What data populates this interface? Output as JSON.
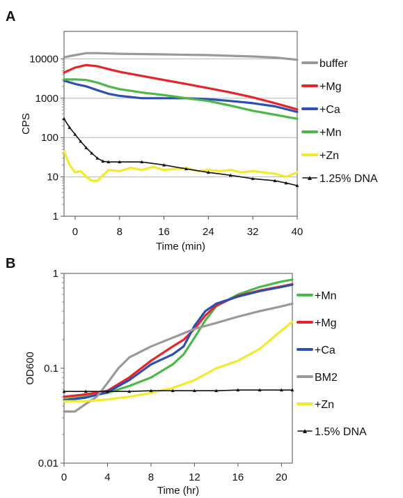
{
  "chart_data": [
    {
      "panel": "A",
      "type": "line",
      "yscale": "log",
      "xlabel": "Time (min)",
      "ylabel": "CPS",
      "xlim": [
        -2,
        40
      ],
      "ylim": [
        1,
        50000
      ],
      "xticks": [
        "0",
        "8",
        "16",
        "24",
        "32",
        "40"
      ],
      "yticks": [
        "1",
        "10",
        "100",
        "1000",
        "10000"
      ],
      "grid": "horizontal at decades",
      "legend_position": "right",
      "series": [
        {
          "name": "buffer",
          "color": "#999999",
          "x": [
            -2,
            0,
            2,
            4,
            8,
            16,
            24,
            32,
            36,
            40
          ],
          "y": [
            11000,
            12500,
            14000,
            14000,
            13500,
            13000,
            12500,
            11500,
            10800,
            9500
          ]
        },
        {
          "name": "+Mg",
          "color": "#e8232a",
          "x": [
            -2,
            0,
            2,
            4,
            6,
            8,
            12,
            16,
            20,
            24,
            28,
            32,
            36,
            40
          ],
          "y": [
            4500,
            6000,
            7000,
            6500,
            5500,
            4700,
            3700,
            2900,
            2300,
            1800,
            1400,
            1050,
            750,
            520
          ]
        },
        {
          "name": "+Ca",
          "color": "#2a4fb5",
          "x": [
            -2,
            0,
            2,
            4,
            6,
            8,
            12,
            16,
            20,
            24,
            28,
            32,
            36,
            40
          ],
          "y": [
            2800,
            2300,
            2000,
            1600,
            1300,
            1150,
            1000,
            1000,
            1000,
            950,
            850,
            750,
            620,
            450
          ]
        },
        {
          "name": "+Mn",
          "color": "#4cb848",
          "x": [
            -2,
            0,
            2,
            4,
            6,
            8,
            12,
            16,
            20,
            24,
            28,
            32,
            36,
            40
          ],
          "y": [
            3000,
            3000,
            2900,
            2500,
            2000,
            1700,
            1400,
            1200,
            1000,
            850,
            650,
            480,
            380,
            300
          ]
        },
        {
          "name": "+Zn",
          "color": "#f2ea2a",
          "x": [
            -2,
            -1,
            0,
            1,
            2,
            3,
            4,
            6,
            8,
            10,
            12,
            14,
            16,
            18,
            20,
            22,
            24,
            26,
            28,
            30,
            32,
            34,
            36,
            38,
            40
          ],
          "y": [
            45,
            20,
            13,
            14,
            10,
            8,
            8,
            15,
            14,
            17,
            15,
            18,
            15,
            16,
            17,
            14,
            15,
            14,
            15,
            13,
            14,
            13,
            12,
            10,
            13
          ]
        },
        {
          "name": "1.25% DNA",
          "color": "#111111",
          "x": [
            -2,
            -1,
            0,
            1,
            2,
            3,
            4,
            5,
            6,
            8,
            12,
            16,
            20,
            24,
            28,
            32,
            36,
            38,
            40
          ],
          "y": [
            300,
            180,
            120,
            80,
            55,
            40,
            30,
            25,
            24,
            24,
            24,
            20,
            16,
            13,
            11,
            9,
            8,
            7,
            6
          ]
        }
      ]
    },
    {
      "panel": "B",
      "type": "line",
      "yscale": "log",
      "xlabel": "Time (hr)",
      "ylabel": "OD600",
      "xlim": [
        0,
        21
      ],
      "ylim": [
        0.01,
        1
      ],
      "xticks": [
        "0",
        "4",
        "8",
        "12",
        "16",
        "20"
      ],
      "yticks": [
        "0.01",
        "0.1",
        "1"
      ],
      "grid": false,
      "legend_position": "right",
      "series": [
        {
          "name": "+Mn",
          "color": "#4cb848",
          "x": [
            0,
            2,
            4,
            6,
            8,
            10,
            11,
            12,
            13,
            14,
            16,
            18,
            20,
            21
          ],
          "y": [
            0.047,
            0.05,
            0.055,
            0.065,
            0.08,
            0.11,
            0.14,
            0.21,
            0.32,
            0.45,
            0.6,
            0.72,
            0.82,
            0.86
          ]
        },
        {
          "name": "+Mg",
          "color": "#e8232a",
          "x": [
            0,
            2,
            4,
            6,
            8,
            10,
            11,
            12,
            13,
            14,
            16,
            18,
            20,
            21
          ],
          "y": [
            0.05,
            0.053,
            0.058,
            0.08,
            0.12,
            0.17,
            0.2,
            0.26,
            0.36,
            0.46,
            0.58,
            0.66,
            0.73,
            0.77
          ]
        },
        {
          "name": "+Ca",
          "color": "#2a4fb5",
          "x": [
            0,
            2,
            4,
            6,
            8,
            10,
            11,
            12,
            13,
            14,
            16,
            18,
            20,
            21
          ],
          "y": [
            0.046,
            0.049,
            0.056,
            0.075,
            0.11,
            0.14,
            0.17,
            0.28,
            0.4,
            0.48,
            0.57,
            0.65,
            0.72,
            0.76
          ]
        },
        {
          "name": "BM2",
          "color": "#999999",
          "x": [
            0,
            1,
            2,
            3,
            4,
            5,
            6,
            8,
            10,
            12,
            14,
            16,
            18,
            20,
            21
          ],
          "y": [
            0.035,
            0.035,
            0.042,
            0.05,
            0.07,
            0.1,
            0.13,
            0.17,
            0.21,
            0.26,
            0.3,
            0.35,
            0.4,
            0.45,
            0.48
          ]
        },
        {
          "name": "+Zn",
          "color": "#f2ea2a",
          "x": [
            0,
            2,
            4,
            6,
            8,
            10,
            12,
            14,
            16,
            18,
            20,
            21
          ],
          "y": [
            0.045,
            0.045,
            0.047,
            0.05,
            0.055,
            0.062,
            0.075,
            0.1,
            0.12,
            0.16,
            0.25,
            0.31
          ]
        },
        {
          "name": "1.5% DNA",
          "color": "#111111",
          "x": [
            0,
            2,
            4,
            6,
            8,
            10,
            12,
            14,
            16,
            18,
            20,
            21
          ],
          "y": [
            0.057,
            0.057,
            0.057,
            0.057,
            0.058,
            0.058,
            0.058,
            0.058,
            0.059,
            0.059,
            0.059,
            0.059
          ]
        }
      ]
    }
  ]
}
